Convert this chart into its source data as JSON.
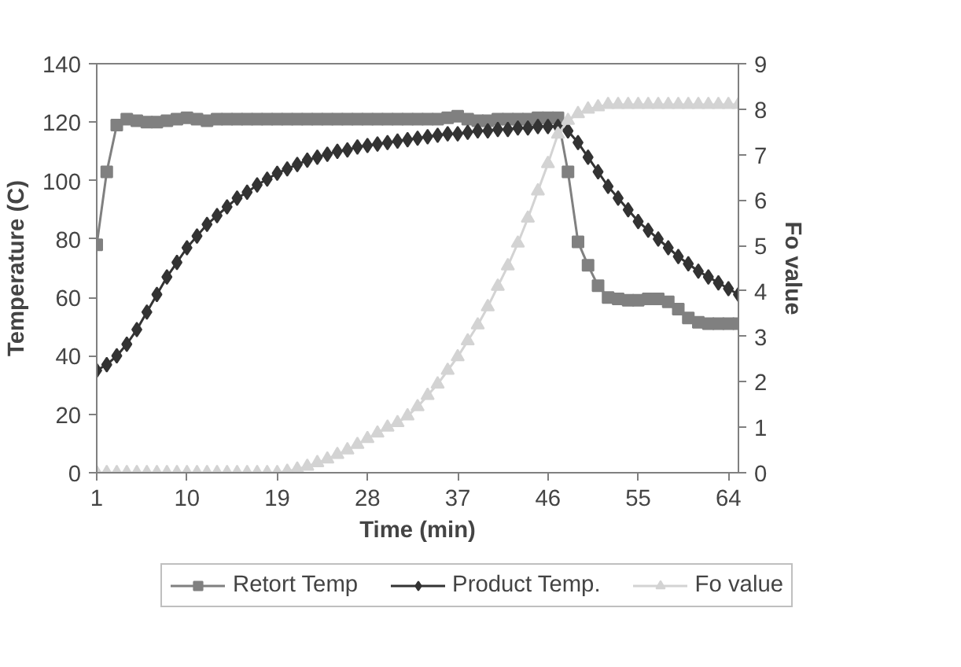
{
  "chart_data": {
    "type": "line",
    "xlabel": "Time (min)",
    "ylabel": "Temperature (C)",
    "y2label": "Fo value",
    "x": [
      1,
      2,
      3,
      4,
      5,
      6,
      7,
      8,
      9,
      10,
      11,
      12,
      13,
      14,
      15,
      16,
      17,
      18,
      19,
      20,
      21,
      22,
      23,
      24,
      25,
      26,
      27,
      28,
      29,
      30,
      31,
      32,
      33,
      34,
      35,
      36,
      37,
      38,
      39,
      40,
      41,
      42,
      43,
      44,
      45,
      46,
      47,
      48,
      49,
      50,
      51,
      52,
      53,
      54,
      55,
      56,
      57,
      58,
      59,
      60,
      61,
      62,
      63,
      64,
      65
    ],
    "xlim": [
      1,
      65
    ],
    "xticks": [
      1,
      10,
      19,
      28,
      37,
      46,
      55,
      64
    ],
    "ylim": [
      0,
      140
    ],
    "yticks": [
      0,
      20,
      40,
      60,
      80,
      100,
      120,
      140
    ],
    "y2lim": [
      0,
      9
    ],
    "y2ticks": [
      0,
      1,
      2,
      3,
      4,
      5,
      6,
      7,
      8,
      9
    ],
    "grid": false,
    "legend": "bottom",
    "line_style": "solid",
    "series": [
      {
        "name": "Retort Temp",
        "color": "#808080",
        "marker": "square",
        "values": [
          78,
          103,
          119,
          121,
          120.5,
          120,
          120,
          120.5,
          121,
          121.5,
          121,
          120.5,
          121,
          121,
          121,
          121,
          121,
          121,
          121,
          121,
          121,
          121,
          121,
          121,
          121,
          121,
          121,
          121,
          121,
          121,
          121,
          121,
          121,
          121,
          121,
          121.5,
          122,
          121,
          120.5,
          120.5,
          121,
          121,
          121,
          121,
          121.5,
          121.5,
          121.5,
          103,
          79,
          71,
          64,
          60,
          59.5,
          59,
          59,
          59.5,
          59.5,
          58.5,
          56,
          53,
          51.5,
          51,
          51,
          51,
          51
        ]
      },
      {
        "name": "Product Temp.",
        "color": "#333333",
        "marker": "diamond",
        "values": [
          35,
          37,
          40,
          44,
          49,
          55,
          61,
          67,
          72,
          77,
          81,
          85,
          88,
          91,
          94,
          96,
          98.5,
          100.5,
          102.5,
          104,
          105.5,
          107,
          108,
          109,
          110,
          110.5,
          111.5,
          112,
          112.5,
          113,
          113.5,
          114,
          114.5,
          115,
          115.5,
          116,
          116,
          116.5,
          117,
          117,
          117.5,
          117.5,
          118,
          118,
          118.5,
          118.5,
          118.5,
          117,
          113,
          108,
          103,
          98,
          94,
          90,
          86,
          83,
          80,
          77,
          74,
          71.5,
          69,
          67,
          65,
          63,
          61
        ]
      },
      {
        "name": "Fo value",
        "color": "#d3d3d3",
        "marker": "triangle",
        "axis": "y2",
        "values": [
          0,
          0,
          0,
          0,
          0,
          0,
          0,
          0,
          0,
          0,
          0,
          0,
          0,
          0,
          0,
          0,
          0,
          0,
          0,
          0.03,
          0.08,
          0.14,
          0.22,
          0.3,
          0.4,
          0.5,
          0.62,
          0.75,
          0.87,
          1.0,
          1.1,
          1.25,
          1.45,
          1.7,
          1.95,
          2.25,
          2.55,
          2.9,
          3.25,
          3.65,
          4.1,
          4.55,
          5.05,
          5.6,
          6.2,
          6.8,
          7.45,
          7.75,
          7.9,
          8.0,
          8.05,
          8.1,
          8.1,
          8.1,
          8.1,
          8.1,
          8.1,
          8.1,
          8.1,
          8.1,
          8.1,
          8.1,
          8.1,
          8.1,
          8.1
        ]
      }
    ]
  }
}
